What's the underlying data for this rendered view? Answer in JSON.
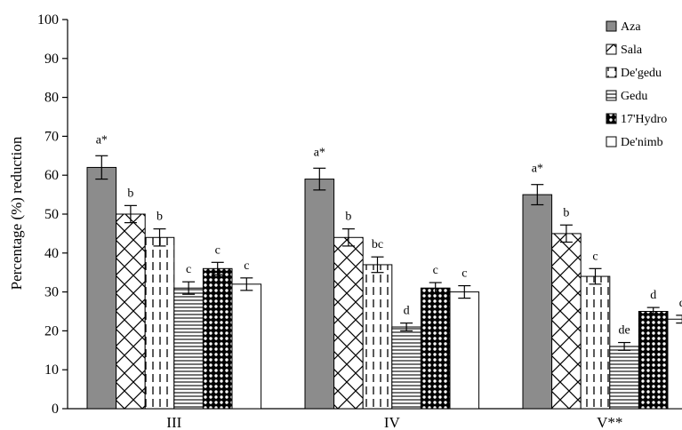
{
  "chart_data": {
    "type": "bar",
    "title": "",
    "xlabel": "",
    "ylabel": "Percentage (%) reduction",
    "ylim": [
      0,
      100
    ],
    "yticks": [
      0,
      10,
      20,
      30,
      40,
      50,
      60,
      70,
      80,
      90,
      100
    ],
    "grid": false,
    "legend_position": "top-right",
    "categories": [
      "III",
      "IV",
      "V**"
    ],
    "series": [
      {
        "name": "Aza",
        "values": [
          62,
          59,
          55
        ],
        "errors": [
          3,
          2.8,
          2.6
        ],
        "labels": [
          "a*",
          "a*",
          "a*"
        ],
        "pattern": "solid-gray"
      },
      {
        "name": "Sala",
        "values": [
          50,
          44,
          45
        ],
        "errors": [
          2.2,
          2.2,
          2.2
        ],
        "labels": [
          "b",
          "b",
          "b"
        ],
        "pattern": "cross-hatch"
      },
      {
        "name": "De'gedu",
        "values": [
          44,
          37,
          34
        ],
        "errors": [
          2.2,
          2,
          2
        ],
        "labels": [
          "b",
          "bc",
          "c"
        ],
        "pattern": "vertical-dashes"
      },
      {
        "name": "Gedu",
        "values": [
          31,
          21,
          16
        ],
        "errors": [
          1.6,
          1,
          1
        ],
        "labels": [
          "c",
          "d",
          "de"
        ],
        "pattern": "horizontal-lines"
      },
      {
        "name": "17'Hydro",
        "values": [
          36,
          31,
          25
        ],
        "errors": [
          1.6,
          1.4,
          1
        ],
        "labels": [
          "c",
          "c",
          "d"
        ],
        "pattern": "dots"
      },
      {
        "name": "De'nimb",
        "values": [
          32,
          30,
          23
        ],
        "errors": [
          1.6,
          1.6,
          1
        ],
        "labels": [
          "c",
          "c",
          "d"
        ],
        "pattern": "white"
      }
    ]
  }
}
